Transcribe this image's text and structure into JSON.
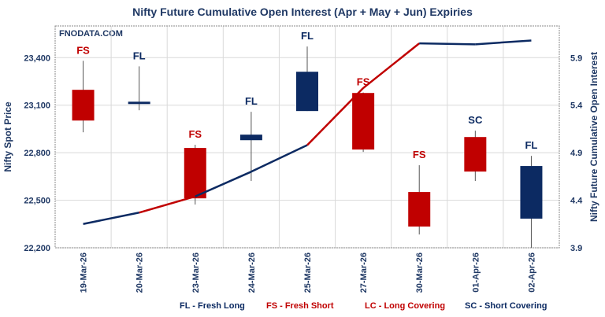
{
  "chart_data": {
    "type": "candlestick+line",
    "title": "Nifty Future Cumulative Open Interest (Apr + May + Jun) Expiries",
    "watermark": "FNODATA.COM",
    "ylabel": "Nifty Spot Price",
    "y2label": "Nifty Future Cumulative Open Interest",
    "ylim": [
      22200,
      23600
    ],
    "y2lim": [
      3.9,
      6.233
    ],
    "yticks": [
      22200,
      22500,
      22800,
      23100,
      23400
    ],
    "ytick_labels": [
      "22,200",
      "22,500",
      "22,800",
      "23,100",
      "23,400"
    ],
    "y2ticks": [
      3.9,
      4.4,
      4.9,
      5.4,
      5.9
    ],
    "y2tick_labels": [
      "3.9",
      "4.4",
      "4.9",
      "5.4",
      "5.9"
    ],
    "categories": [
      "19-Mar-26",
      "20-Mar-26",
      "23-Mar-26",
      "24-Mar-26",
      "25-Mar-26",
      "27-Mar-26",
      "30-Mar-26",
      "01-Apr-26",
      "02-Apr-26"
    ],
    "candles": [
      {
        "open": 23197,
        "high": 23380,
        "low": 22929,
        "close": 23003,
        "label": "FS"
      },
      {
        "open": 23112,
        "high": 23345,
        "low": 23068,
        "close": 23122,
        "label": "FL"
      },
      {
        "open": 22830,
        "high": 22850,
        "low": 22473,
        "close": 22512,
        "label": "FS"
      },
      {
        "open": 22879,
        "high": 23058,
        "low": 22622,
        "close": 22914,
        "label": "FL"
      },
      {
        "open": 23063,
        "high": 23470,
        "low": 23063,
        "close": 23311,
        "label": "FL"
      },
      {
        "open": 23177,
        "high": 23180,
        "low": 22805,
        "close": 22820,
        "label": "FS"
      },
      {
        "open": 22552,
        "high": 22721,
        "low": 22284,
        "close": 22334,
        "label": "FS"
      },
      {
        "open": 22899,
        "high": 22939,
        "low": 22622,
        "close": 22681,
        "label": "SC"
      },
      {
        "open": 22384,
        "high": 22780,
        "low": 22200,
        "close": 22716,
        "label": "FL"
      }
    ],
    "open_interest": [
      4.15,
      4.27,
      4.44,
      4.7,
      4.98,
      5.58,
      6.05,
      6.04,
      6.08
    ],
    "oi_segment_colors": [
      "#0c2a62",
      "#c00000",
      "#0c2a62",
      "#0c2a62",
      "#c00000",
      "#c00000",
      "#0c2a62",
      "#0c2a62"
    ],
    "legend": [
      "FL - Fresh Long",
      "FS - Fresh Short",
      "LC - Long Covering",
      "SC - Short Covering"
    ],
    "legend_colors": [
      "#0c2a62",
      "#c00000",
      "#c00000",
      "#0c2a62"
    ],
    "colors": {
      "bull": "#0c2a62",
      "bear": "#c00000",
      "text": "#1f3864"
    }
  }
}
